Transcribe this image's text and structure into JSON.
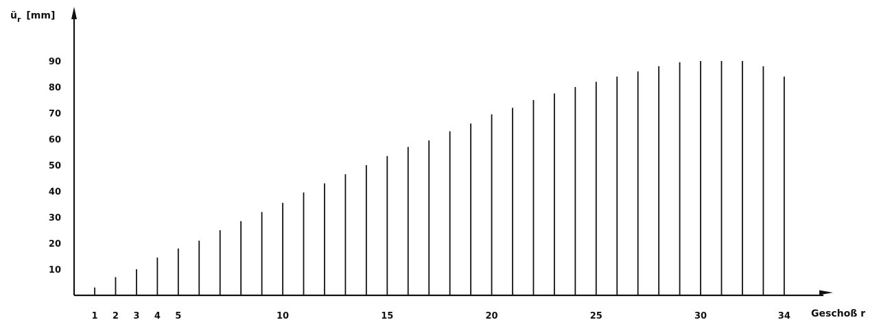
{
  "chart_data": {
    "type": "bar",
    "title": "",
    "ylabel_symbol": "ü",
    "ylabel_subscript": "r",
    "ylabel_unit": "[mm]",
    "xlabel": "Geschoß r",
    "x": [
      1,
      2,
      3,
      4,
      5,
      6,
      7,
      8,
      9,
      10,
      11,
      12,
      13,
      14,
      15,
      16,
      17,
      18,
      19,
      20,
      21,
      22,
      23,
      24,
      25,
      26,
      27,
      28,
      29,
      30,
      31,
      32,
      33,
      34
    ],
    "values": [
      3,
      7,
      10,
      14.5,
      18,
      21,
      25,
      28.5,
      32,
      35.5,
      39.5,
      43,
      46.5,
      50,
      53.5,
      57,
      59.5,
      63,
      66,
      69.5,
      72,
      75,
      77.5,
      80,
      82,
      84,
      86,
      88,
      89.5,
      90,
      90,
      90,
      88,
      84
    ],
    "x_tick_labels": [
      "1",
      "2",
      "3",
      "4",
      "5",
      "10",
      "15",
      "20",
      "25",
      "30",
      "34"
    ],
    "y_ticks": [
      10,
      20,
      30,
      40,
      50,
      60,
      70,
      80,
      90
    ],
    "ylim": [
      0,
      105
    ],
    "grid": false,
    "legend": "none",
    "colors": {
      "bar": "#111111",
      "axis": "#111111",
      "background": "#ffffff"
    }
  }
}
